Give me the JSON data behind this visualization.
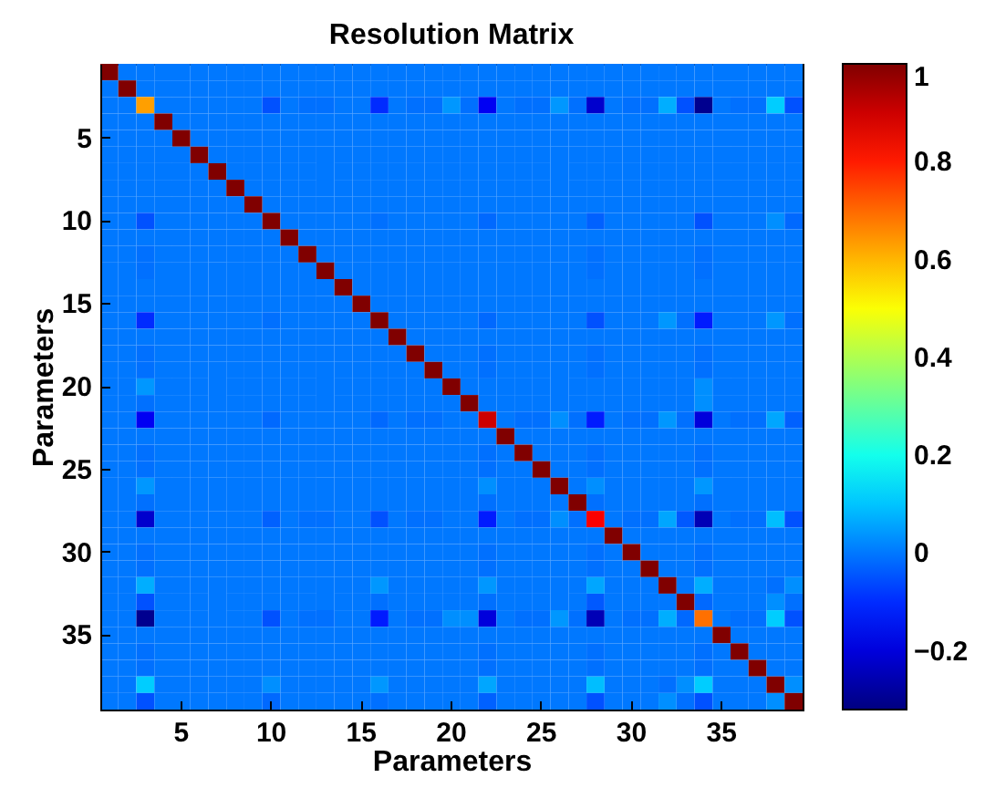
{
  "chart_data": {
    "type": "heatmap",
    "title": "Resolution Matrix",
    "xlabel": "Parameters",
    "ylabel": "Parameters",
    "categories": [
      null,
      null,
      null,
      null,
      "5",
      null,
      null,
      null,
      null,
      "10",
      null,
      null,
      null,
      null,
      "15",
      null,
      null,
      null,
      null,
      "20",
      null,
      null,
      null,
      null,
      "25",
      null,
      null,
      null,
      null,
      "30",
      null,
      null,
      null,
      null,
      "35",
      null,
      null,
      null,
      null
    ],
    "y_categories": [
      null,
      null,
      null,
      null,
      "5",
      null,
      null,
      null,
      null,
      "10",
      null,
      null,
      null,
      null,
      "15",
      null,
      null,
      null,
      null,
      "20",
      null,
      null,
      null,
      null,
      "25",
      null,
      null,
      null,
      null,
      "30",
      null,
      null,
      null,
      null,
      "35",
      null,
      null,
      null,
      null
    ],
    "clim": [
      -0.32,
      1
    ],
    "cticks": [
      -0.2,
      0,
      0.2,
      0.4,
      0.6,
      0.8,
      1
    ],
    "cells": [
      [
        1,
        0,
        0,
        0,
        0,
        0,
        0,
        0,
        0,
        0,
        0,
        0,
        0,
        0,
        0,
        0,
        0,
        0,
        0,
        0,
        0,
        0,
        0,
        0,
        0,
        0,
        0,
        0,
        0,
        0,
        0,
        0,
        0,
        0,
        0,
        0,
        0,
        0,
        0
      ],
      [
        0,
        1,
        0,
        0,
        0,
        0,
        0,
        0,
        0,
        0,
        0,
        0,
        0,
        0,
        0,
        0,
        0,
        0,
        0,
        0,
        0,
        0,
        0,
        0,
        0,
        0,
        0,
        0,
        0,
        0,
        0,
        0,
        0,
        0,
        0,
        0,
        0,
        0,
        0
      ],
      [
        0,
        0,
        0.63,
        0,
        0,
        0,
        0,
        0,
        0,
        -0.05,
        0,
        -0.01,
        -0.01,
        0,
        0,
        -0.1,
        0,
        -0.01,
        -0.01,
        0.04,
        -0.01,
        -0.17,
        0,
        -0.01,
        -0.01,
        0.04,
        -0.01,
        -0.22,
        0,
        -0.01,
        -0.01,
        0.07,
        -0.05,
        -0.3,
        0,
        -0.01,
        -0.01,
        0.11,
        -0.05
      ],
      [
        0,
        0,
        0,
        1,
        0,
        0,
        0,
        0,
        0,
        0,
        0,
        0,
        0,
        0,
        0,
        0,
        0,
        0,
        0,
        0,
        0,
        0,
        0,
        0,
        0,
        0,
        0,
        0,
        0,
        0,
        0,
        0,
        0,
        0,
        0,
        0,
        0,
        0,
        0
      ],
      [
        0,
        0,
        0,
        0,
        1,
        0,
        0,
        0,
        0,
        0,
        0,
        0,
        0,
        0,
        0,
        0,
        0,
        0,
        0,
        0,
        0,
        0,
        0,
        0,
        0,
        0,
        0,
        0,
        0,
        0,
        0,
        0,
        0,
        0,
        0,
        0,
        0,
        0,
        0
      ],
      [
        0,
        0,
        0,
        0,
        0,
        1,
        0,
        0,
        0,
        0,
        0,
        0,
        0,
        0,
        0,
        0,
        0,
        0,
        0,
        0,
        0,
        0,
        0,
        0,
        0,
        0,
        0,
        0,
        0,
        0,
        0,
        0,
        0,
        0,
        0,
        0,
        0,
        0,
        0
      ],
      [
        0,
        0,
        0,
        0,
        0,
        0,
        1,
        0,
        0,
        0,
        0,
        0,
        0,
        0,
        0,
        0,
        0,
        0,
        0,
        0,
        0,
        0,
        0,
        0,
        0,
        0,
        0,
        0,
        0,
        0,
        0,
        0,
        0,
        0,
        0,
        0,
        0,
        0,
        0
      ],
      [
        0,
        0,
        0,
        0,
        0,
        0,
        0,
        1,
        0,
        0,
        0,
        0,
        0,
        0,
        0,
        0,
        0,
        0,
        0,
        0,
        0,
        0,
        0,
        0,
        0,
        0,
        0,
        0,
        0,
        0,
        0,
        0,
        0,
        0,
        0,
        0,
        0,
        0,
        0
      ],
      [
        0,
        0,
        0,
        0,
        0,
        0,
        0,
        0,
        1,
        0,
        0,
        0,
        0,
        0,
        0,
        0,
        0,
        0,
        0,
        0,
        0,
        0,
        0,
        0,
        0,
        0,
        0,
        0,
        0,
        0,
        0,
        0,
        0,
        0,
        0,
        0,
        0,
        0,
        0
      ],
      [
        0,
        0,
        -0.05,
        0,
        0,
        0,
        0,
        0,
        0,
        1,
        0,
        0,
        0,
        0,
        0,
        -0.01,
        0,
        0,
        0,
        0,
        0,
        -0.02,
        0,
        0,
        0,
        0,
        0,
        -0.03,
        0,
        0,
        0,
        0,
        0,
        -0.05,
        0,
        0,
        0,
        0.03,
        -0.02
      ],
      [
        0,
        0,
        0,
        0,
        0,
        0,
        0,
        0,
        0,
        0,
        1,
        0,
        0,
        0,
        0,
        0,
        0,
        0,
        0,
        0,
        0,
        0,
        0,
        0,
        0,
        0,
        0,
        0,
        0,
        0,
        0,
        0,
        0,
        0,
        0,
        0,
        0,
        0,
        0
      ],
      [
        0,
        0,
        -0.01,
        0,
        0,
        0,
        0,
        0,
        0,
        0,
        0,
        1,
        0,
        0,
        0,
        0,
        0,
        0,
        0,
        0,
        0,
        0,
        0,
        0,
        0,
        0,
        0,
        -0.01,
        0,
        0,
        0,
        0,
        0,
        -0.01,
        0,
        0,
        0,
        0,
        0
      ],
      [
        0,
        0,
        -0.01,
        0,
        0,
        0,
        0,
        0,
        0,
        0,
        0,
        0,
        1,
        0,
        0,
        0,
        0,
        0,
        0,
        0,
        0,
        0,
        0,
        0,
        0,
        0,
        0,
        -0.01,
        0,
        0,
        0,
        0,
        0,
        -0.01,
        0,
        0,
        0,
        0,
        0
      ],
      [
        0,
        0,
        0,
        0,
        0,
        0,
        0,
        0,
        0,
        0,
        0,
        0,
        0,
        1,
        0,
        0,
        0,
        0,
        0,
        0,
        0,
        0,
        0,
        0,
        0,
        0,
        0,
        0,
        0,
        0,
        0,
        0,
        0,
        0,
        0,
        0,
        0,
        0,
        0
      ],
      [
        0,
        0,
        0,
        0,
        0,
        0,
        0,
        0,
        0,
        0,
        0,
        0,
        0,
        0,
        1,
        0,
        0,
        0,
        0,
        0,
        0,
        0,
        0,
        0,
        0,
        0,
        0,
        0,
        0,
        0,
        0,
        0,
        0,
        0,
        0,
        0,
        0,
        0,
        0
      ],
      [
        0,
        0,
        -0.1,
        0,
        0,
        0,
        0,
        0,
        0,
        -0.01,
        0,
        0,
        0,
        0,
        0,
        1,
        0,
        0,
        0,
        0,
        0,
        -0.02,
        0,
        0,
        0,
        0,
        0,
        -0.05,
        0,
        0,
        0,
        0.04,
        -0.01,
        -0.12,
        0,
        0,
        0,
        0.04,
        -0.01
      ],
      [
        0,
        0,
        0,
        0,
        0,
        0,
        0,
        0,
        0,
        0,
        0,
        0,
        0,
        0,
        0,
        0,
        1,
        0,
        0,
        0,
        0,
        0,
        0,
        0,
        0,
        0,
        0,
        0,
        0,
        0,
        0,
        0,
        0,
        0,
        0,
        0,
        0,
        0,
        0
      ],
      [
        0,
        0,
        -0.01,
        0,
        0,
        0,
        0,
        0,
        0,
        0,
        0,
        0,
        0,
        0,
        0,
        0,
        0,
        1,
        0,
        0,
        0,
        -0.01,
        0,
        0,
        0,
        0,
        0,
        -0.01,
        0,
        0,
        0,
        0,
        0,
        -0.01,
        0,
        0,
        0,
        0,
        0
      ],
      [
        0,
        0,
        -0.01,
        0,
        0,
        0,
        0,
        0,
        0,
        0,
        0,
        0,
        0,
        0,
        0,
        0,
        0,
        0,
        1,
        0,
        0,
        -0.01,
        0,
        0,
        0,
        0,
        0,
        -0.01,
        0,
        0,
        0,
        0,
        0,
        -0.01,
        0,
        0,
        0,
        0,
        0
      ],
      [
        0,
        0,
        0.04,
        0,
        0,
        0,
        0,
        0,
        0,
        0,
        0,
        0,
        0,
        0,
        0,
        0,
        0,
        0,
        0,
        1,
        0,
        0,
        0,
        0,
        0,
        0,
        0,
        0,
        0,
        0,
        0,
        0,
        0,
        0.03,
        0,
        0,
        0,
        0,
        0
      ],
      [
        0,
        0,
        -0.01,
        0,
        0,
        0,
        0,
        0,
        0,
        0,
        0,
        0,
        0,
        0,
        0,
        0,
        0,
        0,
        0,
        0,
        1,
        0,
        0,
        0,
        0,
        0,
        0,
        0,
        0,
        0,
        0,
        0,
        0,
        0.03,
        0,
        0,
        0,
        0,
        0
      ],
      [
        0,
        0,
        -0.17,
        0,
        0,
        0,
        0,
        0,
        0,
        -0.02,
        0,
        0,
        0,
        0,
        0,
        -0.02,
        0,
        -0.01,
        -0.01,
        0,
        0,
        0.9,
        0,
        -0.01,
        -0.01,
        0.03,
        -0.01,
        -0.12,
        0,
        -0.01,
        -0.01,
        0.04,
        -0.01,
        -0.2,
        0,
        -0.01,
        -0.01,
        0.06,
        -0.03
      ],
      [
        0,
        0,
        0,
        0,
        0,
        0,
        0,
        0,
        0,
        0,
        0,
        0,
        0,
        0,
        0,
        0,
        0,
        0,
        0,
        0,
        0,
        0,
        1,
        0,
        0,
        0,
        0,
        0,
        0,
        0,
        0,
        0,
        0,
        0,
        0,
        0,
        0,
        0,
        0
      ],
      [
        0,
        0,
        -0.01,
        0,
        0,
        0,
        0,
        0,
        0,
        0,
        0,
        0,
        0,
        0,
        0,
        0,
        0,
        0,
        0,
        0,
        0,
        -0.01,
        0,
        1,
        0,
        0,
        0,
        -0.01,
        0,
        0,
        0,
        0,
        0,
        -0.01,
        0,
        0,
        0,
        0,
        0
      ],
      [
        0,
        0,
        -0.01,
        0,
        0,
        0,
        0,
        0,
        0,
        0,
        0,
        0,
        0,
        0,
        0,
        0,
        0,
        0,
        0,
        0,
        0,
        -0.01,
        0,
        0,
        1,
        0,
        0,
        -0.01,
        0,
        0,
        0,
        0,
        0,
        -0.01,
        0,
        0,
        0,
        0,
        0
      ],
      [
        0,
        0,
        0.04,
        0,
        0,
        0,
        0,
        0,
        0,
        0,
        0,
        0,
        0,
        0,
        0,
        0,
        0,
        0,
        0,
        0,
        0,
        0.03,
        0,
        0,
        0,
        1,
        0,
        0.03,
        0,
        0,
        0,
        0,
        0,
        0.04,
        0,
        0,
        0,
        0,
        0
      ],
      [
        0,
        0,
        -0.01,
        0,
        0,
        0,
        0,
        0,
        0,
        0,
        0,
        0,
        0,
        0,
        0,
        0,
        0,
        0,
        0,
        0,
        0,
        -0.01,
        0,
        0,
        0,
        0,
        1,
        -0.01,
        0,
        0,
        0,
        0,
        0,
        -0.01,
        0,
        0,
        0,
        0,
        0
      ],
      [
        0,
        0,
        -0.22,
        0,
        0,
        0,
        0,
        0,
        0,
        -0.03,
        0,
        -0.01,
        -0.01,
        0,
        0,
        -0.05,
        0,
        -0.01,
        -0.01,
        0,
        0,
        -0.12,
        0,
        -0.01,
        -0.01,
        0.03,
        -0.01,
        0.84,
        0,
        -0.01,
        -0.01,
        0.06,
        -0.04,
        -0.25,
        0,
        -0.01,
        -0.01,
        0.09,
        -0.05
      ],
      [
        0,
        0,
        0,
        0,
        0,
        0,
        0,
        0,
        0,
        0,
        0,
        0,
        0,
        0,
        0,
        0,
        0,
        0,
        0,
        0,
        0,
        0,
        0,
        0,
        0,
        0,
        0,
        0,
        1,
        0,
        0,
        0,
        0,
        0,
        0,
        0,
        0,
        0,
        0
      ],
      [
        0,
        0,
        -0.01,
        0,
        0,
        0,
        0,
        0,
        0,
        0,
        0,
        0,
        0,
        0,
        0,
        0,
        0,
        0,
        0,
        0,
        0,
        -0.01,
        0,
        0,
        0,
        0,
        0,
        -0.01,
        0,
        1,
        0,
        0,
        0,
        -0.01,
        0,
        0,
        0,
        0,
        0
      ],
      [
        0,
        0,
        -0.01,
        0,
        0,
        0,
        0,
        0,
        0,
        0,
        0,
        0,
        0,
        0,
        0,
        0,
        0,
        0,
        0,
        0,
        0,
        -0.01,
        0,
        0,
        0,
        0,
        0,
        -0.01,
        0,
        0,
        1,
        0,
        0,
        -0.01,
        0,
        0,
        0,
        0,
        0
      ],
      [
        0,
        0,
        0.07,
        0,
        0,
        0,
        0,
        0,
        0,
        0,
        0,
        0,
        0,
        0,
        0,
        0.04,
        0,
        0,
        0,
        0,
        0,
        0.04,
        0,
        0,
        0,
        0,
        0,
        0.06,
        0,
        0,
        0,
        1,
        0,
        0.07,
        0,
        0,
        0,
        -0.01,
        0.03
      ],
      [
        0,
        0,
        -0.05,
        0,
        0,
        0,
        0,
        0,
        0,
        0,
        0,
        0,
        0,
        0,
        0,
        -0.01,
        0,
        0,
        0,
        0,
        0,
        -0.01,
        0,
        0,
        0,
        0,
        0,
        -0.04,
        0,
        0,
        0,
        0,
        1,
        -0.02,
        0,
        0,
        0,
        0.03,
        -0.01
      ],
      [
        0,
        0,
        -0.3,
        0,
        0,
        0,
        0,
        0,
        0,
        -0.05,
        0,
        -0.01,
        -0.01,
        0,
        0,
        -0.12,
        0,
        -0.01,
        -0.01,
        0.03,
        0.03,
        -0.2,
        0,
        -0.01,
        -0.01,
        0.04,
        -0.01,
        -0.25,
        0,
        -0.01,
        -0.01,
        0.07,
        -0.02,
        0.69,
        0,
        -0.01,
        -0.01,
        0.11,
        -0.05
      ],
      [
        0,
        0,
        0,
        0,
        0,
        0,
        0,
        0,
        0,
        0,
        0,
        0,
        0,
        0,
        0,
        0,
        0,
        0,
        0,
        0,
        0,
        0,
        0,
        0,
        0,
        0,
        0,
        0,
        0,
        0,
        0,
        0,
        0,
        0,
        1,
        0,
        0,
        0,
        0
      ],
      [
        0,
        0,
        -0.01,
        0,
        0,
        0,
        0,
        0,
        0,
        0,
        0,
        0,
        0,
        0,
        0,
        0,
        0,
        0,
        0,
        0,
        0,
        -0.01,
        0,
        0,
        0,
        0,
        0,
        -0.01,
        0,
        0,
        0,
        0,
        0,
        -0.01,
        0,
        1,
        0,
        0,
        0
      ],
      [
        0,
        0,
        -0.01,
        0,
        0,
        0,
        0,
        0,
        0,
        0,
        0,
        0,
        0,
        0,
        0,
        0,
        0,
        0,
        0,
        0,
        0,
        -0.01,
        0,
        0,
        0,
        0,
        0,
        -0.01,
        0,
        0,
        0,
        0,
        0,
        -0.01,
        0,
        0,
        1,
        0,
        0
      ],
      [
        0,
        0,
        0.11,
        0,
        0,
        0,
        0,
        0,
        0,
        0.03,
        0,
        0,
        0,
        0,
        0,
        0.04,
        0,
        0,
        0,
        0,
        0,
        0.06,
        0,
        0,
        0,
        0,
        0,
        0.09,
        0,
        0,
        0,
        -0.01,
        0.03,
        0.11,
        0,
        0,
        0,
        1,
        0.03
      ],
      [
        0,
        0,
        -0.05,
        0,
        0,
        0,
        0,
        0,
        0,
        -0.02,
        0,
        0,
        0,
        0,
        0,
        -0.01,
        0,
        0,
        0,
        0,
        0,
        -0.03,
        0,
        0,
        0,
        0,
        0,
        -0.05,
        0,
        0,
        0,
        0.03,
        -0.01,
        -0.05,
        0,
        0,
        0,
        0.03,
        1
      ]
    ]
  }
}
